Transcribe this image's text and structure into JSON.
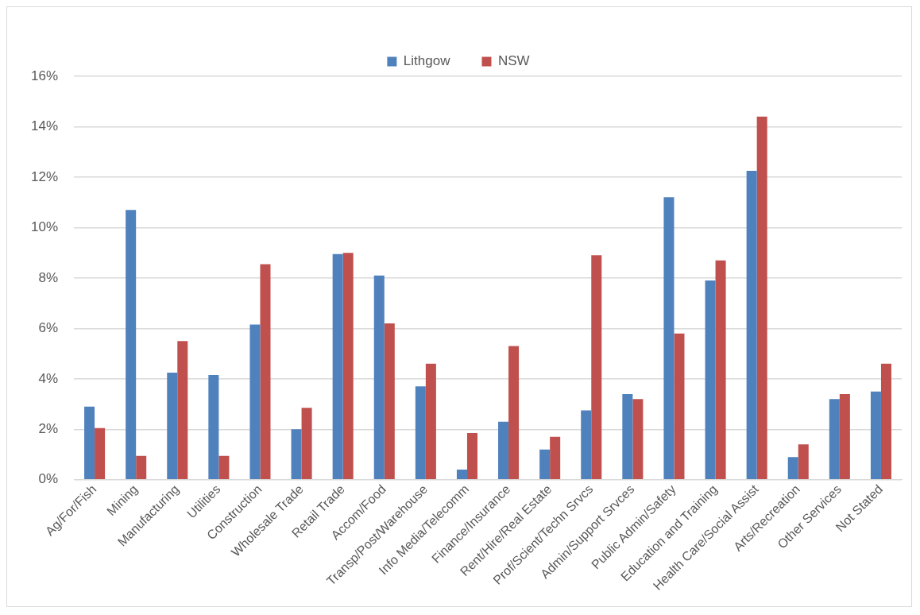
{
  "chart_data": {
    "type": "bar",
    "categories": [
      "Ag/For/Fish",
      "Mining",
      "Manufacturing",
      "Utilities",
      "Construction",
      "Wholesale Trade",
      "Retail Trade",
      "Accom/Food",
      "Transp/Post/Warehouse",
      "Info Media/Telecomm",
      "Finance/Insurance",
      "Rent/Hire/Real Estate",
      "Prof/Scient/Techn Srvcs",
      "Admin/Support Srvces",
      "Public Admin/Safety",
      "Education and Training",
      "Health Care/Social Assist",
      "Arts/Recreation",
      "Other Services",
      "Not Stated"
    ],
    "series": [
      {
        "name": "Lithgow",
        "color": "#4f81bd",
        "values": [
          2.9,
          10.7,
          4.25,
          4.15,
          6.15,
          2.0,
          8.95,
          8.1,
          3.7,
          0.4,
          2.3,
          1.2,
          2.75,
          3.4,
          11.2,
          7.9,
          12.25,
          0.9,
          3.2,
          3.5
        ]
      },
      {
        "name": "NSW",
        "color": "#c0504d",
        "values": [
          2.05,
          0.95,
          5.5,
          0.95,
          8.55,
          2.85,
          9.0,
          6.2,
          4.6,
          1.85,
          5.3,
          1.7,
          8.9,
          3.2,
          5.8,
          8.7,
          14.4,
          1.4,
          3.4,
          4.6
        ]
      }
    ],
    "ylim": [
      0,
      16
    ],
    "yticks": [
      {
        "value": 0,
        "label": "0%"
      },
      {
        "value": 2,
        "label": "2%"
      },
      {
        "value": 4,
        "label": "4%"
      },
      {
        "value": 6,
        "label": "6%"
      },
      {
        "value": 8,
        "label": "8%"
      },
      {
        "value": 10,
        "label": "10%"
      },
      {
        "value": 12,
        "label": "12%"
      },
      {
        "value": 14,
        "label": "14%"
      },
      {
        "value": 16,
        "label": "16%"
      }
    ],
    "grid": "y",
    "legend": "top"
  }
}
